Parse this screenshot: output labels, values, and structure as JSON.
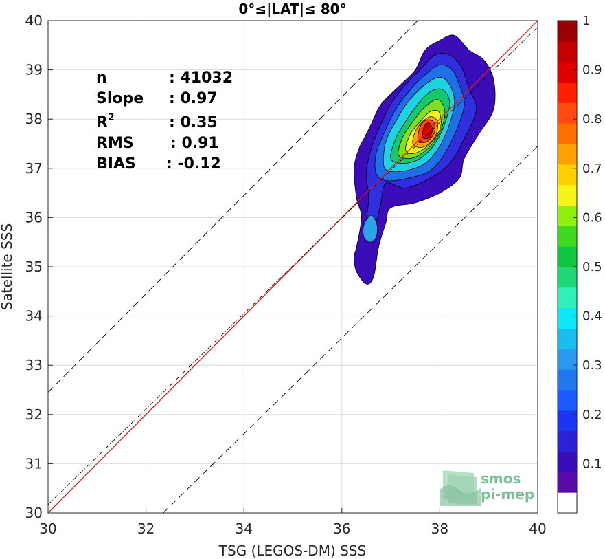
{
  "chart_data": {
    "type": "contour",
    "title": "0°≤|LAT|≤ 80°",
    "xlabel": "TSG (LEGOS-DM) SSS",
    "ylabel": "Satellite SSS",
    "xlim": [
      30,
      40
    ],
    "ylim": [
      30,
      40
    ],
    "xticks": [
      "30",
      "32",
      "34",
      "36",
      "38",
      "40"
    ],
    "yticks": [
      "30",
      "31",
      "32",
      "33",
      "34",
      "35",
      "36",
      "37",
      "38",
      "39",
      "40"
    ],
    "grid": true,
    "stats": [
      {
        "label": "n",
        "value": ": 41032"
      },
      {
        "label": "Slope",
        "value": ": 0.97"
      },
      {
        "label": "R",
        "sup": "2",
        "value": ": 0.35"
      },
      {
        "label": "RMS",
        "value": ": 0.91"
      },
      {
        "label": "BIAS",
        "value": ": -0.12"
      }
    ],
    "lines": [
      {
        "role": "one-to-one",
        "color": "#e31a1c",
        "style": "solid",
        "points": [
          [
            30,
            30
          ],
          [
            40,
            40
          ]
        ]
      },
      {
        "role": "regression-fit",
        "color": "#000000",
        "style": "dash-dot",
        "points": [
          [
            30,
            30.17
          ],
          [
            40,
            39.87
          ]
        ]
      },
      {
        "role": "upper-bound",
        "color": "#000000",
        "style": "dashed",
        "points": [
          [
            30,
            32.45
          ],
          [
            37.55,
            40
          ]
        ]
      },
      {
        "role": "lower-bound",
        "color": "#000000",
        "style": "dashed",
        "points": [
          [
            32.35,
            30
          ],
          [
            40,
            37.45
          ]
        ]
      }
    ],
    "density_peak": {
      "x": 37.8,
      "y": 37.8
    },
    "density_levels": [
      {
        "level": 0.05,
        "color": "#3a0db8",
        "polygon": [
          [
            36.3,
            35.4
          ],
          [
            36.4,
            36.0
          ],
          [
            36.3,
            36.4
          ],
          [
            36.25,
            37.0
          ],
          [
            36.35,
            37.4
          ],
          [
            36.45,
            37.6
          ],
          [
            36.6,
            37.9
          ],
          [
            36.8,
            38.3
          ],
          [
            37.2,
            38.7
          ],
          [
            37.5,
            39.0
          ],
          [
            37.7,
            39.4
          ],
          [
            38.0,
            39.6
          ],
          [
            38.3,
            39.7
          ],
          [
            38.6,
            39.4
          ],
          [
            38.9,
            39.2
          ],
          [
            39.1,
            38.8
          ],
          [
            39.1,
            38.2
          ],
          [
            38.8,
            37.7
          ],
          [
            38.5,
            37.2
          ],
          [
            38.4,
            36.8
          ],
          [
            38.0,
            36.5
          ],
          [
            37.5,
            36.3
          ],
          [
            37.0,
            36.2
          ],
          [
            36.9,
            35.9
          ],
          [
            36.75,
            35.4
          ],
          [
            36.65,
            34.8
          ],
          [
            36.5,
            34.65
          ],
          [
            36.3,
            34.9
          ],
          [
            36.25,
            35.2
          ]
        ]
      },
      {
        "level": 0.15,
        "color": "#2f2fe0",
        "polygon": [
          [
            36.5,
            35.9
          ],
          [
            36.55,
            36.4
          ],
          [
            36.5,
            36.9
          ],
          [
            36.6,
            37.4
          ],
          [
            36.8,
            37.9
          ],
          [
            37.0,
            38.3
          ],
          [
            37.3,
            38.7
          ],
          [
            37.6,
            39.0
          ],
          [
            37.9,
            39.3
          ],
          [
            38.2,
            39.3
          ],
          [
            38.45,
            39.05
          ],
          [
            38.6,
            38.6
          ],
          [
            38.75,
            38.2
          ],
          [
            38.5,
            37.6
          ],
          [
            38.2,
            37.1
          ],
          [
            37.8,
            36.8
          ],
          [
            37.3,
            36.6
          ],
          [
            36.9,
            36.7
          ],
          [
            36.8,
            36.3
          ],
          [
            36.7,
            35.9
          ],
          [
            36.6,
            35.7
          ]
        ]
      },
      {
        "level": 0.25,
        "color": "#1f6fe8",
        "polygon": [
          [
            36.7,
            36.9
          ],
          [
            36.7,
            37.3
          ],
          [
            36.9,
            37.8
          ],
          [
            37.1,
            38.2
          ],
          [
            37.4,
            38.6
          ],
          [
            37.7,
            38.9
          ],
          [
            38.0,
            39.1
          ],
          [
            38.25,
            39.0
          ],
          [
            38.4,
            38.7
          ],
          [
            38.5,
            38.3
          ],
          [
            38.35,
            37.8
          ],
          [
            38.1,
            37.3
          ],
          [
            37.8,
            36.95
          ],
          [
            37.35,
            36.8
          ],
          [
            36.9,
            36.75
          ]
        ]
      },
      {
        "level": 0.28,
        "color": "#2aa3e8",
        "polygon": [
          [
            36.45,
            35.6
          ],
          [
            36.45,
            35.85
          ],
          [
            36.6,
            36.05
          ],
          [
            36.72,
            35.85
          ],
          [
            36.7,
            35.6
          ],
          [
            36.58,
            35.5
          ]
        ]
      },
      {
        "level": 0.35,
        "color": "#1ed2e0",
        "polygon": [
          [
            36.85,
            37.1
          ],
          [
            36.9,
            37.55
          ],
          [
            37.1,
            37.95
          ],
          [
            37.35,
            38.35
          ],
          [
            37.7,
            38.7
          ],
          [
            38.0,
            38.85
          ],
          [
            38.2,
            38.7
          ],
          [
            38.3,
            38.35
          ],
          [
            38.2,
            37.9
          ],
          [
            38.0,
            37.45
          ],
          [
            37.7,
            37.1
          ],
          [
            37.3,
            36.95
          ],
          [
            36.95,
            36.95
          ]
        ]
      },
      {
        "level": 0.45,
        "color": "#15c86a",
        "polygon": [
          [
            37.0,
            37.2
          ],
          [
            37.1,
            37.6
          ],
          [
            37.3,
            37.95
          ],
          [
            37.55,
            38.3
          ],
          [
            37.8,
            38.55
          ],
          [
            38.05,
            38.6
          ],
          [
            38.2,
            38.35
          ],
          [
            38.1,
            37.9
          ],
          [
            37.9,
            37.5
          ],
          [
            37.6,
            37.2
          ],
          [
            37.25,
            37.1
          ]
        ]
      },
      {
        "level": 0.55,
        "color": "#7fe01e",
        "polygon": [
          [
            37.15,
            37.3
          ],
          [
            37.25,
            37.65
          ],
          [
            37.45,
            37.95
          ],
          [
            37.7,
            38.25
          ],
          [
            37.95,
            38.4
          ],
          [
            38.1,
            38.2
          ],
          [
            38.05,
            37.85
          ],
          [
            37.85,
            37.5
          ],
          [
            37.55,
            37.25
          ],
          [
            37.3,
            37.2
          ]
        ]
      },
      {
        "level": 0.65,
        "color": "#f2f21a",
        "polygon": [
          [
            37.3,
            37.4
          ],
          [
            37.4,
            37.7
          ],
          [
            37.6,
            37.95
          ],
          [
            37.8,
            38.15
          ],
          [
            37.98,
            38.15
          ],
          [
            38.02,
            37.85
          ],
          [
            37.85,
            37.55
          ],
          [
            37.6,
            37.35
          ],
          [
            37.4,
            37.3
          ]
        ]
      },
      {
        "level": 0.75,
        "color": "#ffa500",
        "polygon": [
          [
            37.45,
            37.5
          ],
          [
            37.5,
            37.75
          ],
          [
            37.65,
            37.95
          ],
          [
            37.82,
            38.05
          ],
          [
            37.95,
            37.95
          ],
          [
            37.93,
            37.7
          ],
          [
            37.78,
            37.5
          ],
          [
            37.6,
            37.42
          ]
        ]
      },
      {
        "level": 0.85,
        "color": "#ff4a10",
        "polygon": [
          [
            37.55,
            37.6
          ],
          [
            37.6,
            37.85
          ],
          [
            37.72,
            37.98
          ],
          [
            37.87,
            37.95
          ],
          [
            37.9,
            37.75
          ],
          [
            37.78,
            37.57
          ],
          [
            37.64,
            37.52
          ]
        ]
      },
      {
        "level": 0.95,
        "color": "#d40000",
        "polygon": [
          [
            37.65,
            37.65
          ],
          [
            37.68,
            37.85
          ],
          [
            37.78,
            37.92
          ],
          [
            37.85,
            37.8
          ],
          [
            37.8,
            37.63
          ],
          [
            37.72,
            37.6
          ]
        ]
      }
    ],
    "colorbar": {
      "ticks": [
        "0.1",
        "0.2",
        "0.3",
        "0.4",
        "0.5",
        "0.6",
        "0.7",
        "0.8",
        "0.9",
        "1"
      ],
      "range": [
        0,
        1
      ],
      "colors": [
        "#ffffff",
        "#5a0aa8",
        "#3a0db8",
        "#2a22d4",
        "#1a36f0",
        "#1a5aff",
        "#1f78f0",
        "#2a9af0",
        "#1bbcf0",
        "#0de8f8",
        "#2ff0b8",
        "#20d878",
        "#10c840",
        "#40d820",
        "#90f010",
        "#f5f51a",
        "#ffd000",
        "#ffa000",
        "#ff7000",
        "#ff4a10",
        "#ff2000",
        "#e00000",
        "#c40000",
        "#9a0000"
      ]
    },
    "logo": {
      "line1": "smos",
      "line2": "pi-mep"
    }
  }
}
